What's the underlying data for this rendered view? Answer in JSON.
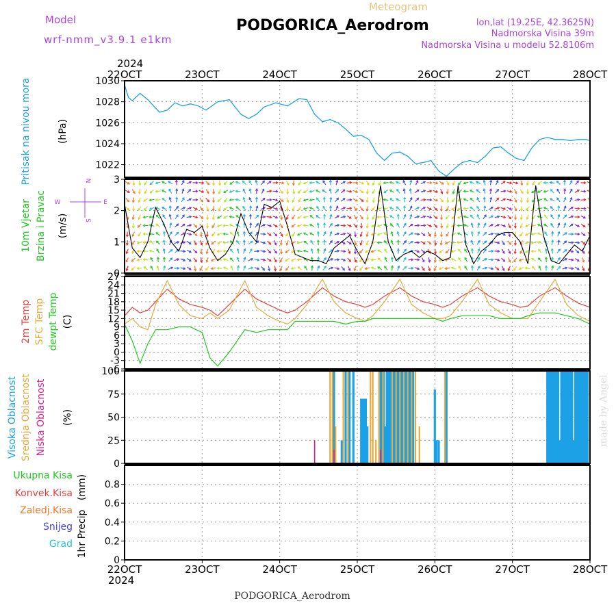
{
  "header": {
    "model_label": "Model",
    "model_name": "wrf-nmm_v3.9.1  e1km",
    "chart_kind": "Meteogram",
    "station": "PODGORICA_Aerodrom",
    "lonlat": "lon,lat (19.25E, 42.3625N)",
    "elevation": "Nadmorska Visina 39m",
    "model_elevation": "Nadmorska Visina u modelu 52.8106m"
  },
  "footer": {
    "station": "PODGORICA_Aerodrom",
    "credit": "made by Angel"
  },
  "time_axis": {
    "year_top": "2024",
    "year_bottom": "2024",
    "ticks": [
      "22OCT",
      "23OCT",
      "24OCT",
      "25OCT",
      "26OCT",
      "27OCT",
      "28OCT"
    ]
  },
  "colors": {
    "pressure": "#1ca0e6",
    "temp2m": "#e6413c",
    "sfc_temp": "#e6aa3c",
    "dewpt": "#1ec81e",
    "high_cloud": "#1ca0e6",
    "mid_cloud": "#e6aa3c",
    "low_cloud": "#e0208a",
    "total_precip": "#1ec81e",
    "conv_precip": "#e6413c",
    "frozen_precip": "#f0782a",
    "snow": "#4444dd",
    "hail": "#20c8c8",
    "purple_text": "#aa44dd",
    "wind_speed_line": "#000000"
  },
  "chart_data": [
    {
      "type": "line",
      "panel": "pressure",
      "y_label": "Pritisak na nivou mora",
      "unit": "(hPa)",
      "ylim": [
        1020.8,
        1030
      ],
      "y_ticks": [
        1022,
        1024,
        1026,
        1028,
        1030
      ],
      "grid": true,
      "x": [
        22.0,
        22.05,
        22.1,
        22.2,
        22.3,
        22.45,
        22.55,
        22.65,
        22.75,
        22.85,
        22.95,
        23.05,
        23.2,
        23.35,
        23.5,
        23.6,
        23.7,
        23.8,
        23.95,
        24.1,
        24.25,
        24.35,
        24.45,
        24.55,
        24.65,
        24.75,
        24.85,
        24.95,
        25.05,
        25.15,
        25.25,
        25.35,
        25.45,
        25.55,
        25.65,
        25.75,
        25.85,
        25.95,
        26.05,
        26.15,
        26.25,
        26.35,
        26.45,
        26.55,
        26.65,
        26.75,
        26.85,
        26.95,
        27.05,
        27.15,
        27.25,
        27.35,
        27.45,
        27.55,
        27.65,
        27.75,
        27.85,
        27.95,
        28.0
      ],
      "series": [
        {
          "values": [
            1029.6,
            1028.4,
            1028.1,
            1028.8,
            1028.2,
            1027.0,
            1027.2,
            1027.9,
            1027.6,
            1027.8,
            1027.6,
            1027.2,
            1028.0,
            1028.2,
            1026.8,
            1026.4,
            1026.8,
            1027.5,
            1027.9,
            1027.6,
            1028.3,
            1028.2,
            1026.8,
            1026.1,
            1026.3,
            1026.0,
            1025.4,
            1024.7,
            1024.8,
            1024.4,
            1023.1,
            1022.4,
            1023.1,
            1023.2,
            1022.8,
            1022.1,
            1022.2,
            1022.4,
            1021.4,
            1020.9,
            1021.6,
            1022.2,
            1022.4,
            1022.2,
            1022.8,
            1023.6,
            1023.7,
            1023.1,
            1022.6,
            1022.4,
            1023.6,
            1024.4,
            1024.6,
            1024.4,
            1024.4,
            1024.3,
            1024.4,
            1024.4,
            1024.3
          ]
        }
      ]
    },
    {
      "type": "line",
      "panel": "wind",
      "y_label": "10m Vjetar",
      "y_label2": "Brzina i Pravac",
      "unit": "(m/s)",
      "compass": {
        "n": "N",
        "w": "W",
        "e": "E",
        "s": "S"
      },
      "ylim": [
        0,
        3
      ],
      "y_ticks": [
        0,
        1,
        2,
        3
      ],
      "grid": true,
      "x": [
        22.0,
        22.1,
        22.2,
        22.3,
        22.4,
        22.5,
        22.6,
        22.7,
        22.8,
        22.9,
        23.0,
        23.1,
        23.2,
        23.3,
        23.4,
        23.5,
        23.6,
        23.7,
        23.8,
        23.9,
        24.0,
        24.1,
        24.2,
        24.3,
        24.4,
        24.5,
        24.6,
        24.7,
        24.8,
        24.9,
        25.0,
        25.1,
        25.2,
        25.3,
        25.4,
        25.5,
        25.6,
        25.7,
        25.8,
        25.9,
        26.0,
        26.1,
        26.2,
        26.3,
        26.4,
        26.5,
        26.6,
        26.7,
        26.8,
        26.9,
        27.0,
        27.1,
        27.2,
        27.3,
        27.4,
        27.5,
        27.6,
        27.7,
        27.8,
        27.9,
        28.0
      ],
      "series": [
        {
          "name": "speed",
          "values": [
            2.2,
            0.8,
            0.5,
            1.0,
            2.1,
            1.6,
            1.0,
            0.7,
            1.4,
            1.3,
            1.5,
            0.8,
            0.4,
            0.6,
            1.0,
            1.9,
            1.3,
            1.0,
            2.2,
            2.1,
            2.3,
            1.5,
            0.6,
            0.5,
            0.4,
            0.4,
            0.3,
            0.8,
            1.0,
            1.2,
            0.7,
            0.3,
            1.0,
            2.8,
            1.0,
            0.4,
            0.6,
            0.7,
            0.5,
            0.7,
            0.6,
            0.4,
            0.5,
            2.8,
            0.9,
            0.3,
            0.7,
            0.9,
            1.2,
            1.3,
            1.3,
            1.0,
            0.3,
            2.8,
            1.2,
            0.4,
            0.3,
            0.6,
            0.9,
            0.7,
            1.2
          ]
        }
      ]
    },
    {
      "type": "line",
      "panel": "temperature",
      "y_labels": [
        "2m Temp",
        "SFC Temp",
        "dewpt Temp"
      ],
      "unit": "(C)",
      "ylim": [
        -6,
        27
      ],
      "y_ticks": [
        -6,
        -3,
        0,
        3,
        6,
        9,
        12,
        15,
        18,
        21,
        24,
        27
      ],
      "grid": true,
      "x": [
        22.0,
        22.1,
        22.2,
        22.3,
        22.4,
        22.55,
        22.7,
        22.85,
        23.0,
        23.1,
        23.2,
        23.35,
        23.55,
        23.7,
        23.85,
        24.0,
        24.1,
        24.2,
        24.35,
        24.55,
        24.7,
        24.85,
        25.0,
        25.1,
        25.2,
        25.35,
        25.55,
        25.7,
        25.85,
        26.0,
        26.1,
        26.2,
        26.35,
        26.55,
        26.7,
        26.85,
        27.0,
        27.1,
        27.2,
        27.35,
        27.55,
        27.7,
        27.85,
        28.0
      ],
      "series": [
        {
          "name": "2m Temp",
          "values": [
            13,
            16,
            14,
            15,
            18,
            22.5,
            19,
            17,
            16,
            15,
            13,
            17,
            22.5,
            19,
            17,
            15,
            14,
            15,
            18,
            23,
            20,
            18,
            17,
            16,
            17,
            20,
            23,
            20,
            18,
            17,
            16,
            17,
            20,
            23,
            20,
            18,
            17,
            16,
            16.5,
            20,
            23,
            20,
            17.5,
            16
          ]
        },
        {
          "name": "SFC Temp",
          "values": [
            10,
            12,
            9,
            8,
            17,
            25.5,
            17,
            13,
            12,
            14,
            12,
            15,
            25.5,
            16,
            13,
            11,
            10,
            12,
            17,
            26,
            18,
            14,
            12,
            11,
            13,
            18,
            26,
            17,
            14,
            12,
            12,
            13,
            18,
            26,
            17,
            14,
            12,
            12,
            12,
            18,
            26,
            17,
            13,
            11
          ]
        },
        {
          "name": "dewpt Temp",
          "values": [
            10,
            4,
            -4,
            3,
            8,
            8,
            9,
            9,
            7,
            -2,
            -5,
            0,
            8,
            7,
            8,
            8,
            8,
            11,
            11,
            11,
            11,
            10,
            11,
            11,
            12,
            12,
            12,
            12,
            12,
            12,
            11,
            12,
            13,
            13,
            13,
            12,
            12,
            12,
            13,
            14,
            14,
            13,
            12,
            10
          ]
        }
      ]
    },
    {
      "type": "bar",
      "panel": "cloud",
      "y_labels": [
        "Visoka Oblacnost",
        "Srednja Oblacnost",
        "Niska Oblacnost"
      ],
      "unit": "(%)",
      "ylim": [
        0,
        100
      ],
      "y_ticks": [
        0,
        25,
        50,
        75,
        100
      ],
      "grid": true,
      "series": [
        {
          "name": "Visoka Oblacnost",
          "x": [
            24.7,
            24.8,
            24.85,
            24.9,
            24.95,
            25.05,
            25.07,
            25.09,
            25.11,
            25.13,
            25.3,
            25.32,
            25.34,
            25.36,
            25.38,
            25.4,
            25.42,
            25.44,
            25.46,
            25.48,
            25.5,
            25.52,
            25.54,
            25.56,
            25.58,
            25.6,
            25.62,
            25.64,
            25.66,
            25.68,
            25.7,
            25.72,
            26.0,
            26.02,
            26.05,
            26.15,
            27.45,
            27.47,
            27.49,
            27.51,
            27.53,
            27.55,
            27.57,
            27.59,
            27.61,
            27.63,
            27.65,
            27.67,
            27.69,
            27.71,
            27.73,
            27.75,
            27.77,
            27.79,
            27.81,
            27.83,
            27.85,
            27.87,
            27.89,
            27.91,
            27.93,
            27.95,
            27.97
          ],
          "values": [
            100,
            25,
            100,
            100,
            100,
            70,
            70,
            70,
            70,
            40,
            100,
            100,
            100,
            40,
            100,
            100,
            100,
            100,
            100,
            100,
            100,
            100,
            100,
            100,
            100,
            100,
            100,
            100,
            100,
            100,
            100,
            100,
            80,
            25,
            25,
            100,
            100,
            100,
            100,
            100,
            100,
            100,
            100,
            100,
            25,
            100,
            100,
            100,
            100,
            100,
            100,
            100,
            100,
            25,
            100,
            100,
            100,
            100,
            100,
            100,
            100,
            100,
            100
          ]
        },
        {
          "name": "Srednja Oblacnost",
          "x": [
            24.65,
            24.68,
            24.72,
            24.82,
            24.88,
            25.17,
            25.2,
            25.24,
            25.28,
            25.33,
            25.45,
            25.5,
            25.55,
            25.6,
            25.65,
            25.7,
            25.75,
            25.8,
            26.13
          ],
          "values": [
            100,
            100,
            40,
            100,
            100,
            100,
            100,
            25,
            100,
            100,
            100,
            100,
            100,
            100,
            100,
            100,
            100,
            40,
            100
          ]
        },
        {
          "name": "Niska Oblacnost",
          "x": [
            24.45,
            24.7,
            25.3
          ],
          "values": [
            25,
            15,
            15
          ]
        }
      ]
    },
    {
      "type": "line",
      "panel": "precip",
      "y_label": "1hr Precip",
      "unit": "(mm)",
      "legend": [
        "Ukupna Kisa",
        "Konvek.Kisa",
        "Zaledj.Kisa",
        "Snijeg",
        "Grad"
      ],
      "ylim": [
        0,
        1.0
      ],
      "y_ticks": [
        0,
        0.2,
        0.4,
        0.6,
        0.8
      ],
      "grid": true,
      "x": [
        22.0,
        28.0
      ],
      "series": [
        {
          "name": "Ukupna Kisa",
          "values": [
            0,
            0
          ]
        },
        {
          "name": "Konvek.Kisa",
          "values": [
            0,
            0
          ]
        },
        {
          "name": "Zaledj.Kisa",
          "values": [
            0,
            0
          ]
        },
        {
          "name": "Snijeg",
          "values": [
            0,
            0
          ]
        },
        {
          "name": "Grad",
          "values": [
            0,
            0
          ]
        }
      ]
    }
  ]
}
